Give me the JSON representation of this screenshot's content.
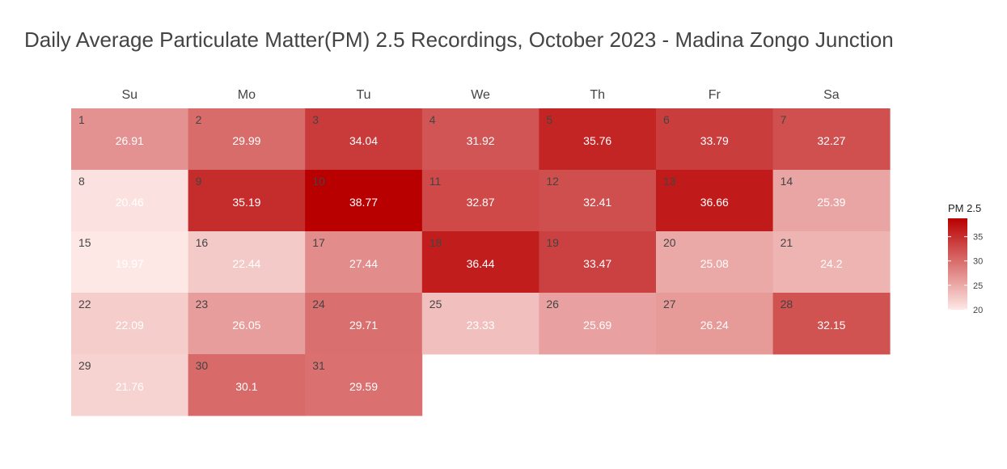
{
  "chart_data": {
    "type": "heatmap",
    "subtype": "calendar",
    "title": "Daily Average Particulate Matter(PM) 2.5 Recordings, October 2023 - Madina Zongo Junction",
    "weekdays": [
      "Su",
      "Mo",
      "Tu",
      "We",
      "Th",
      "Fr",
      "Sa"
    ],
    "month": "October 2023",
    "first_weekday_index": 0,
    "days": [
      1,
      2,
      3,
      4,
      5,
      6,
      7,
      8,
      9,
      10,
      11,
      12,
      13,
      14,
      15,
      16,
      17,
      18,
      19,
      20,
      21,
      22,
      23,
      24,
      25,
      26,
      27,
      28,
      29,
      30,
      31
    ],
    "values": [
      26.91,
      29.99,
      34.04,
      31.92,
      35.76,
      33.79,
      32.27,
      20.46,
      35.19,
      38.77,
      32.87,
      32.41,
      36.66,
      25.39,
      19.97,
      22.44,
      27.44,
      36.44,
      33.47,
      25.08,
      24.2,
      22.09,
      26.05,
      29.71,
      23.33,
      25.69,
      26.24,
      32.15,
      21.76,
      30.1,
      29.59
    ],
    "value_labels": [
      "26.91",
      "29.99",
      "34.04",
      "31.92",
      "35.76",
      "33.79",
      "32.27",
      "20.46",
      "35.19",
      "38.77",
      "32.87",
      "32.41",
      "36.66",
      "25.39",
      "19.97",
      "22.44",
      "27.44",
      "36.44",
      "33.47",
      "25.08",
      "24.2",
      "22.09",
      "26.05",
      "29.71",
      "23.33",
      "25.69",
      "26.24",
      "32.15",
      "21.76",
      "30.1",
      "29.59"
    ],
    "legend": {
      "title": "PM 2.5",
      "ticks": [
        "35",
        "30",
        "25",
        "20"
      ],
      "tick_values": [
        35,
        30,
        25,
        20
      ],
      "range": [
        19.97,
        38.77
      ],
      "placement": "right"
    },
    "colors": {
      "low": "#fde8e6",
      "high": "#b80000"
    },
    "grid": false
  }
}
